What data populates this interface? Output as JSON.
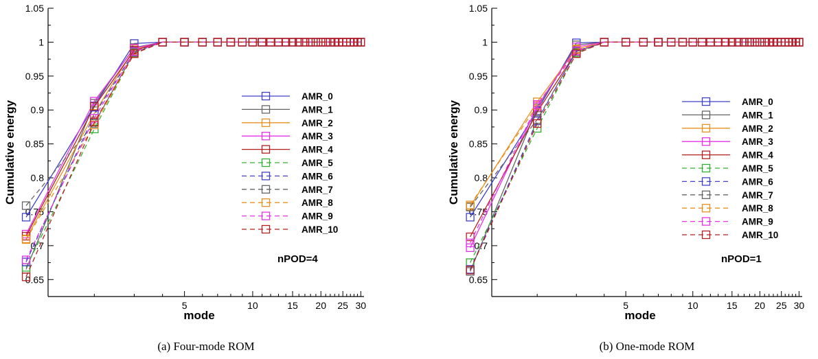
{
  "chart_data": [
    {
      "type": "line",
      "xlabel": "mode",
      "ylabel": "Cumulative energy",
      "x_scale": "log",
      "xlim": [
        1.25,
        31
      ],
      "ylim": [
        0.625,
        1.05
      ],
      "y_ticks": [
        "0.65",
        "0.7",
        "0.75",
        "0.8",
        "0.85",
        "0.9",
        "0.95",
        "1",
        "1.05"
      ],
      "x_major_ticks": [
        "5",
        "10",
        "15",
        "20",
        "25",
        "30"
      ],
      "annotation": "nPOD=4",
      "caption": "(a)  Four-mode ROM",
      "x": [
        1,
        2,
        3,
        4,
        5,
        6,
        7,
        8,
        9,
        10,
        11,
        12,
        13,
        14,
        15,
        16,
        17,
        18,
        19,
        20,
        21,
        22,
        23,
        24,
        25,
        26,
        27,
        28,
        29,
        30
      ],
      "series": [
        {
          "name": "AMR_0",
          "style": "solid",
          "first_three": [
            0.742,
            0.906,
            0.998
          ]
        },
        {
          "name": "AMR_1",
          "style": "solid",
          "first_three": [
            0.665,
            0.91,
            0.992
          ]
        },
        {
          "name": "AMR_2",
          "style": "solid",
          "first_three": [
            0.71,
            0.895,
            0.99
          ]
        },
        {
          "name": "AMR_3",
          "style": "solid",
          "first_three": [
            0.717,
            0.913,
            0.991
          ]
        },
        {
          "name": "AMR_4",
          "style": "solid",
          "first_three": [
            0.714,
            0.905,
            0.988
          ]
        },
        {
          "name": "AMR_5",
          "style": "dashed",
          "first_three": [
            0.668,
            0.872,
            0.984
          ]
        },
        {
          "name": "AMR_6",
          "style": "dashed",
          "first_three": [
            0.676,
            0.893,
            0.986
          ]
        },
        {
          "name": "AMR_7",
          "style": "dashed",
          "first_three": [
            0.759,
            0.88,
            0.985
          ]
        },
        {
          "name": "AMR_8",
          "style": "dashed",
          "first_three": [
            0.709,
            0.878,
            0.983
          ]
        },
        {
          "name": "AMR_9",
          "style": "dashed",
          "first_three": [
            0.679,
            0.888,
            0.986
          ]
        },
        {
          "name": "AMR_10",
          "style": "dashed",
          "first_three": [
            0.654,
            0.882,
            0.983
          ]
        }
      ],
      "plateau_value": 1.0
    },
    {
      "type": "line",
      "xlabel": "mode",
      "ylabel": "Cumulative energy",
      "x_scale": "log",
      "xlim": [
        1.25,
        31
      ],
      "ylim": [
        0.625,
        1.05
      ],
      "y_ticks": [
        "0.65",
        "0.7",
        "0.75",
        "0.8",
        "0.85",
        "0.9",
        "0.95",
        "1",
        "1.05"
      ],
      "x_major_ticks": [
        "5",
        "10",
        "15",
        "20",
        "25",
        "30"
      ],
      "annotation": "nPOD=1",
      "caption": "(b)  One-mode ROM",
      "x": [
        1,
        2,
        3,
        4,
        5,
        6,
        7,
        8,
        9,
        10,
        11,
        12,
        13,
        14,
        15,
        16,
        17,
        18,
        19,
        20,
        21,
        22,
        23,
        24,
        25,
        26,
        27,
        28,
        29,
        30
      ],
      "series": [
        {
          "name": "AMR_0",
          "style": "solid",
          "first_three": [
            0.742,
            0.899,
            0.999
          ]
        },
        {
          "name": "AMR_1",
          "style": "solid",
          "first_three": [
            0.662,
            0.903,
            0.996
          ]
        },
        {
          "name": "AMR_2",
          "style": "solid",
          "first_three": [
            0.758,
            0.912,
            0.99
          ]
        },
        {
          "name": "AMR_3",
          "style": "solid",
          "first_three": [
            0.697,
            0.905,
            0.993
          ]
        },
        {
          "name": "AMR_4",
          "style": "solid",
          "first_three": [
            0.713,
            0.897,
            0.986
          ]
        },
        {
          "name": "AMR_5",
          "style": "dashed",
          "first_three": [
            0.675,
            0.873,
            0.984
          ]
        },
        {
          "name": "AMR_6",
          "style": "dashed",
          "first_three": [
            0.665,
            0.884,
            0.987
          ]
        },
        {
          "name": "AMR_7",
          "style": "dashed",
          "first_three": [
            0.757,
            0.886,
            0.986
          ]
        },
        {
          "name": "AMR_8",
          "style": "dashed",
          "first_three": [
            0.76,
            0.907,
            0.989
          ]
        },
        {
          "name": "AMR_9",
          "style": "dashed",
          "first_three": [
            0.704,
            0.908,
            0.987
          ]
        },
        {
          "name": "AMR_10",
          "style": "dashed",
          "first_three": [
            0.664,
            0.88,
            0.983
          ]
        }
      ],
      "plateau_value": 1.0
    }
  ],
  "colors": {
    "AMR_0": "#4040c8",
    "AMR_1": "#646464",
    "AMR_2": "#e8901e",
    "AMR_3": "#e632e6",
    "AMR_4": "#b41e1e",
    "AMR_5": "#30b030",
    "AMR_6": "#4040c8",
    "AMR_7": "#646464",
    "AMR_8": "#e8901e",
    "AMR_9": "#e632e6",
    "AMR_10": "#b41e1e"
  }
}
